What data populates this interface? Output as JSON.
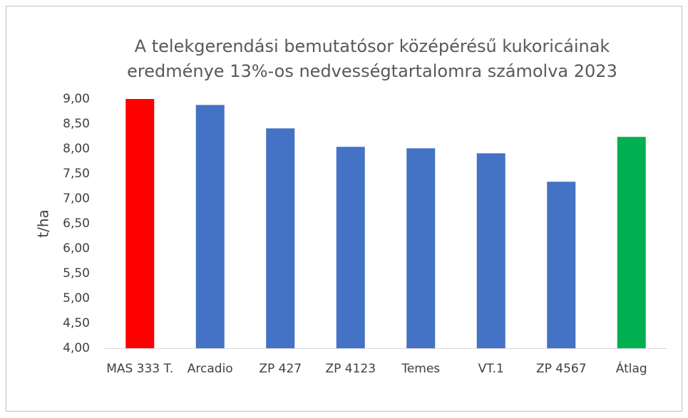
{
  "chart_data": {
    "type": "bar",
    "title": "A telekgerendási bemutatósor középérésű kukoricáinak eredménye 13%-os nedvességtartalomra számolva 2023",
    "y_label": "t/ha",
    "categories": [
      "MAS 333 T.",
      "Arcadio",
      "ZP 427",
      "ZP 4123",
      "Temes",
      "VT.1",
      "ZP 4567",
      "Átlag"
    ],
    "values": [
      9.0,
      8.88,
      8.41,
      8.04,
      8.01,
      7.91,
      7.34,
      8.24
    ],
    "colors": [
      "#ff0000",
      "#4472c4",
      "#4472c4",
      "#4472c4",
      "#4472c4",
      "#4472c4",
      "#4472c4",
      "#00b050"
    ],
    "ylim": [
      4,
      9
    ],
    "yticks": [
      {
        "value": 4,
        "label": "4,00"
      },
      {
        "value": 4.5,
        "label": "4,50"
      },
      {
        "value": 5,
        "label": "5,00"
      },
      {
        "value": 5.5,
        "label": "5,50"
      },
      {
        "value": 6,
        "label": "6,00"
      },
      {
        "value": 6.5,
        "label": "6,50"
      },
      {
        "value": 7,
        "label": "7,00"
      },
      {
        "value": 7.5,
        "label": "7,50"
      },
      {
        "value": 8,
        "label": "8,00"
      },
      {
        "value": 8.5,
        "label": "8,50"
      },
      {
        "value": 9,
        "label": "9,00"
      }
    ],
    "grid": false
  }
}
